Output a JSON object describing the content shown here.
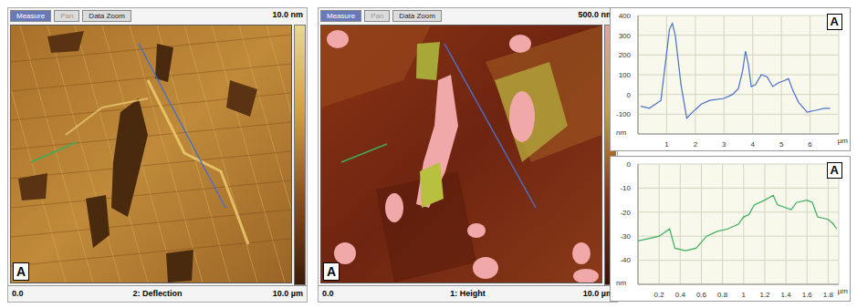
{
  "images": [
    {
      "buttons": [
        "Measure",
        "Pan",
        "Data Zoom"
      ],
      "scale_label": "10.0 nm",
      "corner_label": "A",
      "x_start": "0.0",
      "channel": "2: Deflection",
      "x_end": "10.0 µm"
    },
    {
      "buttons": [
        "Measure",
        "Pan",
        "Data Zoom"
      ],
      "scale_label": "500.0 nm",
      "corner_label": "A",
      "x_start": "0.0",
      "channel": "1: Height",
      "x_end": "10.0 µm"
    }
  ],
  "chart_data": [
    {
      "type": "line",
      "label": "A",
      "color": "#4a6fc9",
      "x": [
        0.1,
        0.4,
        0.6,
        0.8,
        0.95,
        1.1,
        1.2,
        1.3,
        1.5,
        1.7,
        1.9,
        2.2,
        2.5,
        3.0,
        3.3,
        3.5,
        3.65,
        3.75,
        3.85,
        3.95,
        4.1,
        4.3,
        4.5,
        4.7,
        4.9,
        5.1,
        5.25,
        5.4,
        5.6,
        5.9,
        6.2,
        6.5,
        6.7
      ],
      "values": [
        -60,
        -70,
        -50,
        -30,
        150,
        330,
        360,
        300,
        50,
        -120,
        -90,
        -50,
        -30,
        -20,
        0,
        30,
        120,
        220,
        150,
        40,
        50,
        100,
        90,
        40,
        60,
        70,
        80,
        20,
        -40,
        -90,
        -80,
        -70,
        -70
      ],
      "xlim": [
        0,
        7
      ],
      "xticks": [
        1,
        2,
        3,
        4,
        5,
        6
      ],
      "ylim": [
        -200,
        400
      ],
      "yticks": [
        -100,
        0,
        100,
        200,
        300,
        400
      ],
      "y_unit": "nm",
      "x_unit": "µm",
      "grid": true
    },
    {
      "type": "line",
      "label": "A",
      "color": "#3cae5a",
      "x": [
        0,
        0.1,
        0.2,
        0.3,
        0.35,
        0.45,
        0.55,
        0.65,
        0.75,
        0.85,
        0.95,
        1.0,
        1.05,
        1.1,
        1.2,
        1.28,
        1.32,
        1.45,
        1.5,
        1.6,
        1.65,
        1.7,
        1.8,
        1.85,
        1.88
      ],
      "values": [
        -32,
        -31,
        -30,
        -27,
        -35,
        -36,
        -35,
        -30,
        -28,
        -27,
        -25,
        -22,
        -21,
        -17,
        -15,
        -13,
        -17,
        -19,
        -16,
        -15,
        -16,
        -22,
        -23,
        -25,
        -27
      ],
      "xlim": [
        0,
        1.9
      ],
      "xticks": [
        0.2,
        0.4,
        0.6,
        0.8,
        1,
        1.2,
        1.4,
        1.6,
        1.8
      ],
      "ylim": [
        -50,
        0
      ],
      "yticks": [
        -40,
        -30,
        -20,
        -10,
        0
      ],
      "y_unit": "nm",
      "x_unit": "µm",
      "grid": true
    }
  ]
}
